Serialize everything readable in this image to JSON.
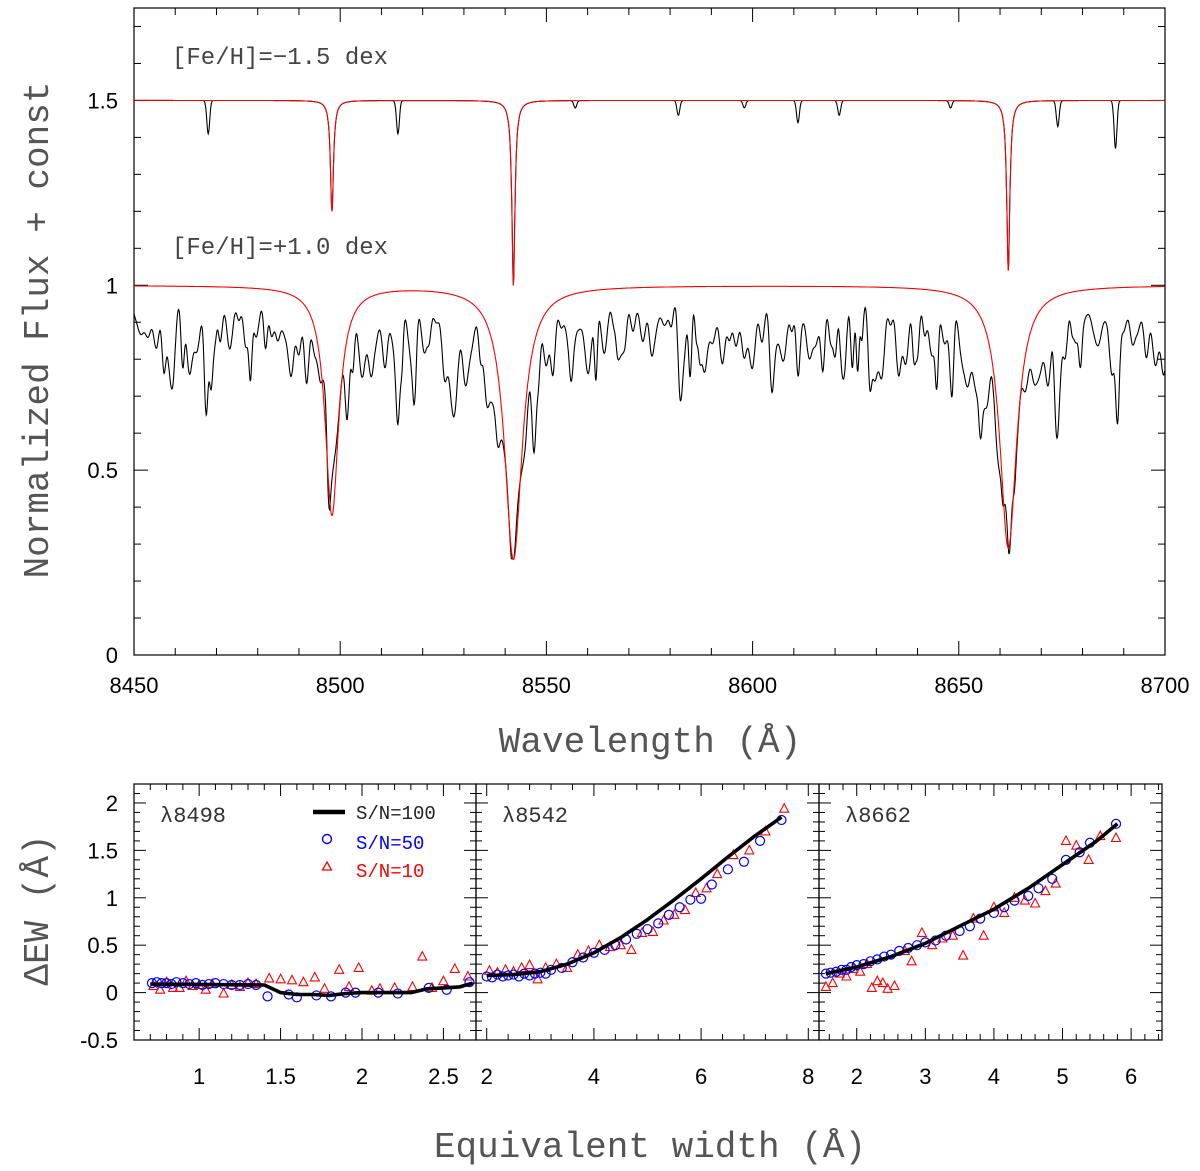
{
  "chart_data": [
    {
      "type": "line",
      "title": "",
      "xlabel": "Wavelength (Å)",
      "ylabel": "Normalized Flux + const",
      "xlim": [
        8450,
        8700
      ],
      "ylim": [
        0,
        1.75
      ],
      "x_ticks": [
        8450,
        8500,
        8550,
        8600,
        8650,
        8700
      ],
      "y_ticks": [
        0,
        0.5,
        1,
        1.5
      ],
      "y_tick_labels": [
        "0",
        "0.5",
        "1",
        "1.5"
      ],
      "colors": {
        "observed": "#000000",
        "model": "#ff0000"
      },
      "ca_lines": [
        8498,
        8542,
        8662
      ],
      "spectra": [
        {
          "name": "[Fe/H]=−1.5 dex",
          "continuum": 1.5,
          "model_depths": [
            0.3,
            0.5,
            0.46
          ],
          "observed_extra_lines": [
            {
              "x": 8468,
              "depth": 0.09
            },
            {
              "x": 8514,
              "depth": 0.09
            },
            {
              "x": 8557,
              "depth": 0.02
            },
            {
              "x": 8582,
              "depth": 0.04
            },
            {
              "x": 8598,
              "depth": 0.02
            },
            {
              "x": 8611,
              "depth": 0.06
            },
            {
              "x": 8621,
              "depth": 0.04
            },
            {
              "x": 8648,
              "depth": 0.02
            },
            {
              "x": 8674,
              "depth": 0.07
            },
            {
              "x": 8688,
              "depth": 0.13
            }
          ]
        },
        {
          "name": "[Fe/H]=+1.0 dex",
          "continuum": 1.0,
          "model_depths": [
            0.62,
            0.74,
            0.71
          ]
        }
      ],
      "annotations": [
        "[Fe/H]=−1.5 dex",
        "[Fe/H]=+1.0 dex"
      ]
    },
    {
      "type": "scatter",
      "layout": "three panels sharing y axis",
      "xlabel": "Equivalent width (Å)",
      "ylabel": "ΔEW (Å)",
      "ylim": [
        -0.5,
        2.2
      ],
      "y_ticks": [
        -0.5,
        0,
        0.5,
        1,
        1.5,
        2
      ],
      "y_tick_labels": [
        "-0.5",
        "0",
        "0.5",
        "1",
        "1.5",
        "2"
      ],
      "legend": [
        {
          "label": "S/N=100",
          "marker": "line",
          "color": "#000000"
        },
        {
          "label": "S/N=50",
          "marker": "circle",
          "color": "#0000ff"
        },
        {
          "label": "S/N=10",
          "marker": "triangle",
          "color": "#ff0000"
        }
      ],
      "panels": [
        {
          "label": "λ8498",
          "xlim": [
            0.6,
            2.7
          ],
          "x_ticks": [
            1,
            1.5,
            2,
            2.5
          ],
          "x_tick_labels": [
            "1",
            "1.5",
            "2",
            "2.5"
          ],
          "sn100": {
            "x": [
              0.7,
              1.4,
              1.45,
              1.5,
              1.6,
              1.7,
              1.8,
              1.9,
              2.0,
              2.1,
              2.2,
              2.3,
              2.35,
              2.4,
              2.5,
              2.6,
              2.68
            ],
            "y": [
              0.09,
              0.08,
              0.04,
              0.0,
              -0.02,
              -0.02,
              -0.03,
              -0.01,
              0.0,
              0.0,
              0.0,
              0.0,
              0.02,
              0.04,
              0.05,
              0.06,
              0.1
            ]
          },
          "sn50": {
            "x": [
              0.71,
              0.74,
              0.77,
              0.8,
              0.83,
              0.86,
              0.9,
              0.94,
              0.98,
              1.02,
              1.06,
              1.1,
              1.15,
              1.2,
              1.25,
              1.3,
              1.35,
              1.42,
              1.55,
              1.6,
              1.72,
              1.81,
              1.9,
              1.96,
              2.1,
              2.22,
              2.41,
              2.52,
              2.66
            ],
            "y": [
              0.1,
              0.11,
              0.1,
              0.1,
              0.09,
              0.11,
              0.1,
              0.09,
              0.1,
              0.08,
              0.09,
              0.1,
              0.09,
              0.08,
              0.08,
              0.09,
              0.08,
              -0.04,
              -0.02,
              -0.05,
              -0.03,
              -0.04,
              0.0,
              0.0,
              0.0,
              -0.01,
              0.05,
              0.03,
              0.11
            ]
          },
          "sn10": {
            "x": [
              0.72,
              0.76,
              0.8,
              0.84,
              0.88,
              0.92,
              0.96,
              1.0,
              1.04,
              1.08,
              1.15,
              1.2,
              1.25,
              1.3,
              1.35,
              1.43,
              1.5,
              1.57,
              1.64,
              1.71,
              1.77,
              1.86,
              1.92,
              1.98,
              2.06,
              2.11,
              2.2,
              2.31,
              2.37,
              2.43,
              2.5,
              2.57,
              2.65
            ],
            "y": [
              0.07,
              0.03,
              0.11,
              0.05,
              0.05,
              0.12,
              0.07,
              0.08,
              0.03,
              0.09,
              -0.01,
              0.08,
              0.06,
              0.1,
              0.09,
              0.15,
              0.14,
              0.13,
              0.11,
              0.16,
              0.04,
              0.24,
              0.06,
              0.26,
              0.02,
              0.04,
              0.05,
              0.06,
              0.38,
              0.05,
              0.12,
              0.25,
              0.17
            ]
          }
        },
        {
          "label": "λ8542",
          "xlim": [
            1.8,
            8.2
          ],
          "x_ticks": [
            2,
            4,
            6,
            8
          ],
          "x_tick_labels": [
            "2",
            "4",
            "6",
            "8"
          ],
          "sn100": {
            "x": [
              2.0,
              2.5,
              3.0,
              3.5,
              4.0,
              4.5,
              5.0,
              5.5,
              6.0,
              6.5,
              7.0,
              7.5
            ],
            "y": [
              0.18,
              0.19,
              0.22,
              0.3,
              0.42,
              0.58,
              0.77,
              0.98,
              1.2,
              1.43,
              1.65,
              1.85
            ]
          },
          "sn50": {
            "x": [
              2.0,
              2.1,
              2.2,
              2.3,
              2.4,
              2.5,
              2.6,
              2.7,
              2.8,
              2.9,
              3.0,
              3.1,
              3.2,
              3.4,
              3.6,
              3.8,
              4.0,
              4.2,
              4.4,
              4.6,
              4.8,
              5.0,
              5.2,
              5.4,
              5.6,
              5.8,
              6.0,
              6.2,
              6.5,
              6.8,
              7.1,
              7.5
            ],
            "y": [
              0.17,
              0.16,
              0.19,
              0.17,
              0.18,
              0.19,
              0.17,
              0.2,
              0.18,
              0.2,
              0.21,
              0.2,
              0.24,
              0.26,
              0.32,
              0.37,
              0.42,
              0.45,
              0.5,
              0.56,
              0.62,
              0.67,
              0.73,
              0.82,
              0.9,
              0.98,
              0.99,
              1.14,
              1.3,
              1.38,
              1.6,
              1.82
            ]
          },
          "sn10": {
            "x": [
              2.05,
              2.2,
              2.35,
              2.5,
              2.65,
              2.8,
              2.95,
              3.1,
              3.3,
              3.5,
              3.7,
              3.9,
              4.1,
              4.3,
              4.5,
              4.7,
              4.9,
              5.1,
              5.3,
              5.5,
              5.7,
              5.9,
              6.1,
              6.3,
              6.6,
              6.9,
              7.2,
              7.55
            ],
            "y": [
              0.23,
              0.21,
              0.24,
              0.22,
              0.26,
              0.29,
              0.14,
              0.26,
              0.3,
              0.26,
              0.4,
              0.44,
              0.5,
              0.48,
              0.5,
              0.45,
              0.63,
              0.64,
              0.76,
              0.82,
              0.87,
              1.05,
              1.1,
              1.25,
              1.45,
              1.5,
              1.7,
              1.94
            ]
          }
        },
        {
          "label": "λ8662",
          "xlim": [
            1.45,
            6.45
          ],
          "x_ticks": [
            2,
            3,
            4,
            5,
            6
          ],
          "x_tick_labels": [
            "2",
            "3",
            "4",
            "5",
            "6"
          ],
          "sn100": {
            "x": [
              1.55,
              2.0,
              2.5,
              3.0,
              3.5,
              4.0,
              4.5,
              5.0,
              5.5,
              5.8
            ],
            "y": [
              0.2,
              0.27,
              0.38,
              0.52,
              0.7,
              0.88,
              1.1,
              1.35,
              1.6,
              1.78
            ]
          },
          "sn50": {
            "x": [
              1.55,
              1.62,
              1.7,
              1.78,
              1.85,
              1.92,
              2.0,
              2.1,
              2.2,
              2.3,
              2.4,
              2.5,
              2.62,
              2.75,
              2.88,
              3.0,
              3.15,
              3.3,
              3.5,
              3.65,
              3.8,
              4.0,
              4.15,
              4.3,
              4.5,
              4.65,
              4.85,
              5.05,
              5.25,
              5.4,
              5.78
            ],
            "y": [
              0.2,
              0.21,
              0.22,
              0.24,
              0.24,
              0.27,
              0.29,
              0.3,
              0.33,
              0.35,
              0.38,
              0.4,
              0.44,
              0.47,
              0.5,
              0.53,
              0.55,
              0.6,
              0.65,
              0.7,
              0.78,
              0.84,
              0.9,
              0.97,
              1.02,
              1.1,
              1.2,
              1.4,
              1.48,
              1.58,
              1.78
            ]
          },
          "sn10": {
            "x": [
              1.55,
              1.65,
              1.75,
              1.85,
              1.95,
              2.05,
              2.15,
              2.22,
              2.3,
              2.38,
              2.45,
              2.55,
              2.7,
              2.8,
              2.95,
              3.1,
              3.25,
              3.4,
              3.55,
              3.7,
              3.85,
              4.0,
              4.15,
              4.3,
              4.45,
              4.6,
              4.75,
              4.9,
              5.05,
              5.2,
              5.38,
              5.55,
              5.78
            ],
            "y": [
              0.06,
              0.1,
              0.2,
              0.17,
              0.25,
              0.22,
              0.3,
              0.05,
              0.12,
              0.1,
              0.04,
              0.07,
              0.44,
              0.33,
              0.63,
              0.5,
              0.57,
              0.6,
              0.39,
              0.78,
              0.6,
              0.9,
              0.84,
              1.0,
              0.97,
              0.94,
              1.07,
              1.15,
              1.6,
              1.55,
              1.4,
              1.65,
              1.63
            ]
          }
        }
      ]
    }
  ]
}
